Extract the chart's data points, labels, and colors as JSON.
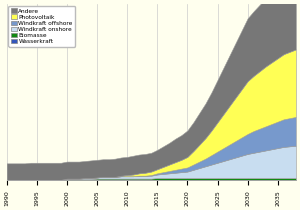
{
  "years": [
    1990,
    1991,
    1992,
    1993,
    1994,
    1995,
    1996,
    1997,
    1998,
    1999,
    2000,
    2001,
    2002,
    2003,
    2004,
    2005,
    2006,
    2007,
    2008,
    2009,
    2010,
    2011,
    2012,
    2013,
    2014,
    2015,
    2016,
    2017,
    2018,
    2019,
    2020,
    2021,
    2022,
    2023,
    2024,
    2025,
    2026,
    2027,
    2028,
    2029,
    2030,
    2031,
    2032,
    2033,
    2034,
    2035,
    2036,
    2037,
    2038
  ],
  "wasserkraft": [
    1,
    1,
    1,
    1,
    1,
    1,
    1,
    1,
    1,
    1,
    1,
    1,
    1,
    1,
    1,
    1,
    1,
    1,
    1,
    1,
    1,
    1,
    1,
    1,
    1,
    1,
    1,
    1,
    1,
    1,
    1,
    1,
    1,
    1,
    1,
    1,
    1,
    1,
    1,
    1,
    1,
    1,
    1,
    1,
    1,
    1,
    1,
    1,
    1
  ],
  "biomasse": [
    0,
    0,
    0,
    0,
    0,
    0,
    0,
    0,
    0,
    0,
    1,
    1,
    1,
    1,
    1,
    2,
    2,
    2,
    2,
    2,
    2,
    2,
    2,
    2,
    2,
    3,
    3,
    3,
    3,
    3,
    3,
    3,
    3,
    3,
    3,
    3,
    3,
    3,
    3,
    3,
    3,
    3,
    3,
    3,
    3,
    3,
    3,
    3,
    3
  ],
  "windkraft_onshore": [
    0,
    0,
    0,
    0,
    0,
    0,
    0,
    0,
    0,
    0,
    1,
    1,
    1,
    2,
    2,
    2,
    3,
    3,
    3,
    4,
    4,
    4,
    5,
    5,
    5,
    6,
    7,
    8,
    9,
    10,
    11,
    14,
    17,
    20,
    23,
    26,
    29,
    32,
    35,
    38,
    41,
    43,
    45,
    47,
    49,
    51,
    53,
    54,
    55
  ],
  "windkraft_offshore": [
    0,
    0,
    0,
    0,
    0,
    0,
    0,
    0,
    0,
    0,
    0,
    0,
    0,
    0,
    0,
    0,
    0,
    0,
    0,
    0,
    0,
    0,
    0,
    0,
    1,
    2,
    3,
    4,
    5,
    6,
    7,
    9,
    11,
    13,
    16,
    19,
    22,
    25,
    28,
    31,
    34,
    37,
    39,
    41,
    43,
    45,
    47,
    48,
    49
  ],
  "photovoltaik": [
    0,
    0,
    0,
    0,
    0,
    0,
    0,
    0,
    0,
    0,
    0,
    0,
    0,
    0,
    0,
    0,
    0,
    0,
    0,
    1,
    2,
    3,
    4,
    5,
    6,
    7,
    9,
    11,
    13,
    15,
    18,
    23,
    29,
    35,
    42,
    50,
    58,
    66,
    74,
    82,
    90,
    94,
    98,
    102,
    105,
    108,
    111,
    113,
    115
  ],
  "andere": [
    28,
    28,
    28,
    28,
    29,
    29,
    29,
    29,
    29,
    29,
    29,
    29,
    29,
    29,
    30,
    30,
    30,
    30,
    31,
    31,
    31,
    32,
    32,
    32,
    32,
    33,
    35,
    37,
    40,
    42,
    45,
    49,
    54,
    59,
    65,
    72,
    79,
    86,
    93,
    100,
    107,
    110,
    113,
    116,
    118,
    121,
    122,
    123,
    124
  ],
  "colors": {
    "wasserkraft": "#3355bb",
    "biomasse": "#118811",
    "windkraft_onshore": "#c8ddf0",
    "windkraft_offshore": "#7799cc",
    "photovoltaik": "#ffff55",
    "andere": "#777777"
  },
  "legend_labels": [
    "Andere",
    "Photovoltaik",
    "Windkraft offshore",
    "Windkraft onshore",
    "Biomasse",
    "Wasserkraft"
  ],
  "background_color": "#ffffee",
  "grid_color": "#cccccc",
  "xlim": [
    1990,
    2038
  ],
  "ylim": [
    0,
    300
  ],
  "xticks": [
    1990,
    1995,
    2000,
    2005,
    2010,
    2015,
    2020,
    2025,
    2030,
    2035
  ]
}
